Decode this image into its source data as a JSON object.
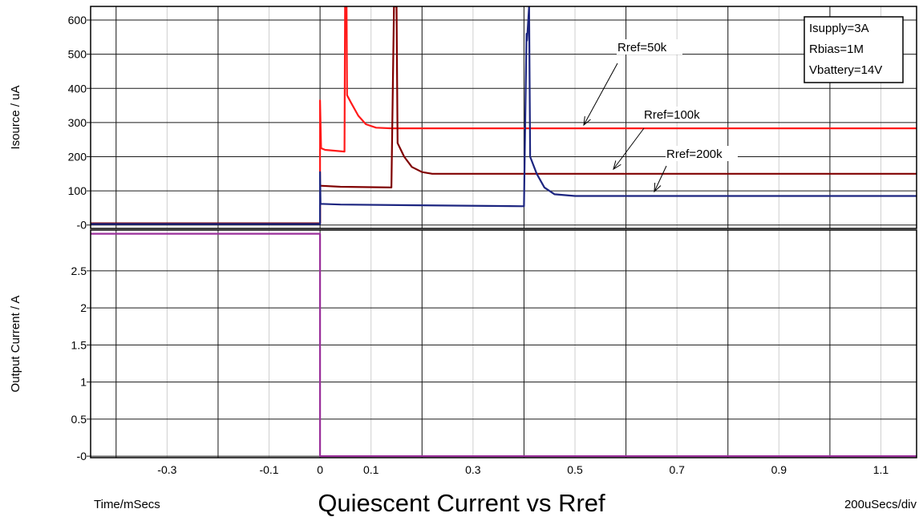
{
  "chart_data": {
    "type": "line",
    "title": "Quiescent Current vs Rref",
    "x_unit_label": "Time/mSecs",
    "time_scale_label": "200uSecs/div",
    "xlim": [
      -0.45,
      1.17
    ],
    "x_ticks": [
      -0.3,
      -0.1,
      0,
      0.1,
      0.3,
      0.5,
      0.7,
      0.9,
      1.1
    ],
    "x_tick_labels": [
      "-0.3",
      "-0.1",
      "0",
      "0.1",
      "0.3",
      "0.5",
      "0.7",
      "0.9",
      "1.1"
    ],
    "x_major_lines": [
      -0.4,
      -0.2,
      0,
      0.2,
      0.4,
      0.6,
      0.8,
      1.0
    ],
    "x_minor_lines": [
      -0.4,
      -0.3,
      -0.2,
      -0.1,
      0,
      0.1,
      0.2,
      0.3,
      0.4,
      0.5,
      0.6,
      0.7,
      0.8,
      0.9,
      1.0,
      1.1
    ],
    "grid": true,
    "panels": [
      {
        "ylabel": "Isource / uA",
        "ylim": [
          -10,
          640
        ],
        "y_ticks": [
          0,
          100,
          200,
          300,
          400,
          500,
          600
        ],
        "y_tick_labels": [
          "-0",
          "100",
          "200",
          "300",
          "400",
          "500",
          "600"
        ],
        "info_box": {
          "lines": [
            "Isupply=3A",
            "Rbias=1M",
            "Vbattery=14V"
          ],
          "placement": "top-right"
        },
        "series": [
          {
            "name": "Rref=50k",
            "color": "#ff1a1a",
            "points": [
              [
                -0.45,
                5
              ],
              [
                0,
                5
              ],
              [
                0,
                365
              ],
              [
                0.002,
                225
              ],
              [
                0.01,
                220
              ],
              [
                0.048,
                215
              ],
              [
                0.049,
                640
              ],
              [
                0.052,
                640
              ],
              [
                0.053,
                380
              ],
              [
                0.06,
                360
              ],
              [
                0.075,
                320
              ],
              [
                0.09,
                295
              ],
              [
                0.11,
                285
              ],
              [
                0.14,
                283
              ],
              [
                1.17,
                283
              ]
            ],
            "annotation": {
              "text": "Rref=50k",
              "placement": "upper-right"
            }
          },
          {
            "name": "Rref=100k",
            "color": "#800000",
            "points": [
              [
                -0.45,
                5
              ],
              [
                0,
                5
              ],
              [
                0,
                115
              ],
              [
                0.04,
                112
              ],
              [
                0.14,
                110
              ],
              [
                0.145,
                640
              ],
              [
                0.15,
                640
              ],
              [
                0.152,
                240
              ],
              [
                0.165,
                200
              ],
              [
                0.18,
                170
              ],
              [
                0.2,
                155
              ],
              [
                0.22,
                150
              ],
              [
                1.17,
                150
              ]
            ],
            "annotation": {
              "text": "Rref=100k",
              "placement": "right"
            }
          },
          {
            "name": "Rref=200k",
            "color": "#1c2580",
            "points": [
              [
                -0.45,
                3
              ],
              [
                0,
                3
              ],
              [
                0,
                155
              ],
              [
                0.001,
                62
              ],
              [
                0.04,
                60
              ],
              [
                0.4,
                55
              ],
              [
                0.405,
                560
              ],
              [
                0.406,
                540
              ],
              [
                0.41,
                640
              ],
              [
                0.412,
                200
              ],
              [
                0.425,
                150
              ],
              [
                0.44,
                110
              ],
              [
                0.46,
                90
              ],
              [
                0.5,
                85
              ],
              [
                1.17,
                85
              ]
            ],
            "annotation": {
              "text": "Rref=200k",
              "placement": "lower-right"
            }
          }
        ]
      },
      {
        "ylabel": "Output Current / A",
        "ylim": [
          -0.02,
          3.05
        ],
        "y_ticks": [
          0,
          0.5,
          1,
          1.5,
          2,
          2.5
        ],
        "y_tick_labels": [
          "-0",
          "0.5",
          "1",
          "1.5",
          "2",
          "2.5"
        ],
        "series": [
          {
            "name": "Output Current",
            "color": "#9a2f9a",
            "points": [
              [
                -0.45,
                3
              ],
              [
                0,
                3
              ],
              [
                0,
                0
              ],
              [
                1.17,
                0
              ]
            ]
          }
        ]
      }
    ]
  }
}
